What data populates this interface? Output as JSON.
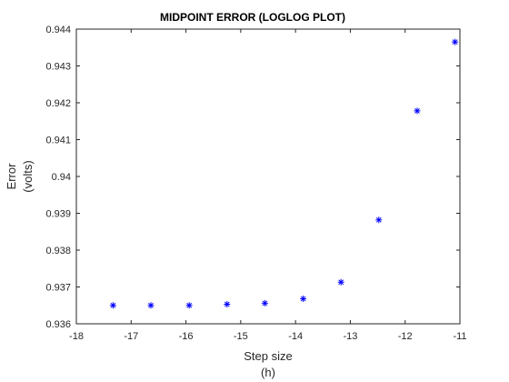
{
  "chart_data": {
    "type": "scatter",
    "title": "MIDPOINT ERROR (LOGLOG PLOT)",
    "xlabel": [
      "Step size",
      "(h)"
    ],
    "ylabel": [
      "Error",
      "(volts)"
    ],
    "xlim": [
      -18,
      -11
    ],
    "ylim": [
      0.936,
      0.944
    ],
    "xticks": [
      -18,
      -17,
      -16,
      -15,
      -14,
      -13,
      -12,
      -11
    ],
    "xtick_labels": [
      "-18",
      "-17",
      "-16",
      "-15",
      "-14",
      "-13",
      "-12",
      "-11"
    ],
    "yticks": [
      0.936,
      0.937,
      0.938,
      0.939,
      0.94,
      0.941,
      0.942,
      0.943,
      0.944
    ],
    "ytick_labels": [
      "0.936",
      "0.937",
      "0.938",
      "0.939",
      "0.94",
      "0.941",
      "0.942",
      "0.943",
      "0.944"
    ],
    "grid": false,
    "marker": "asterisk",
    "marker_color": "#0000ff",
    "series": [
      {
        "x": [
          -17.33,
          -16.64,
          -15.94,
          -15.25,
          -14.56,
          -13.86,
          -13.17,
          -12.48,
          -11.78,
          -11.09
        ],
        "y": [
          0.9365,
          0.9365,
          0.9365,
          0.93653,
          0.93656,
          0.93668,
          0.93713,
          0.93882,
          0.94178,
          0.94365
        ]
      }
    ]
  }
}
